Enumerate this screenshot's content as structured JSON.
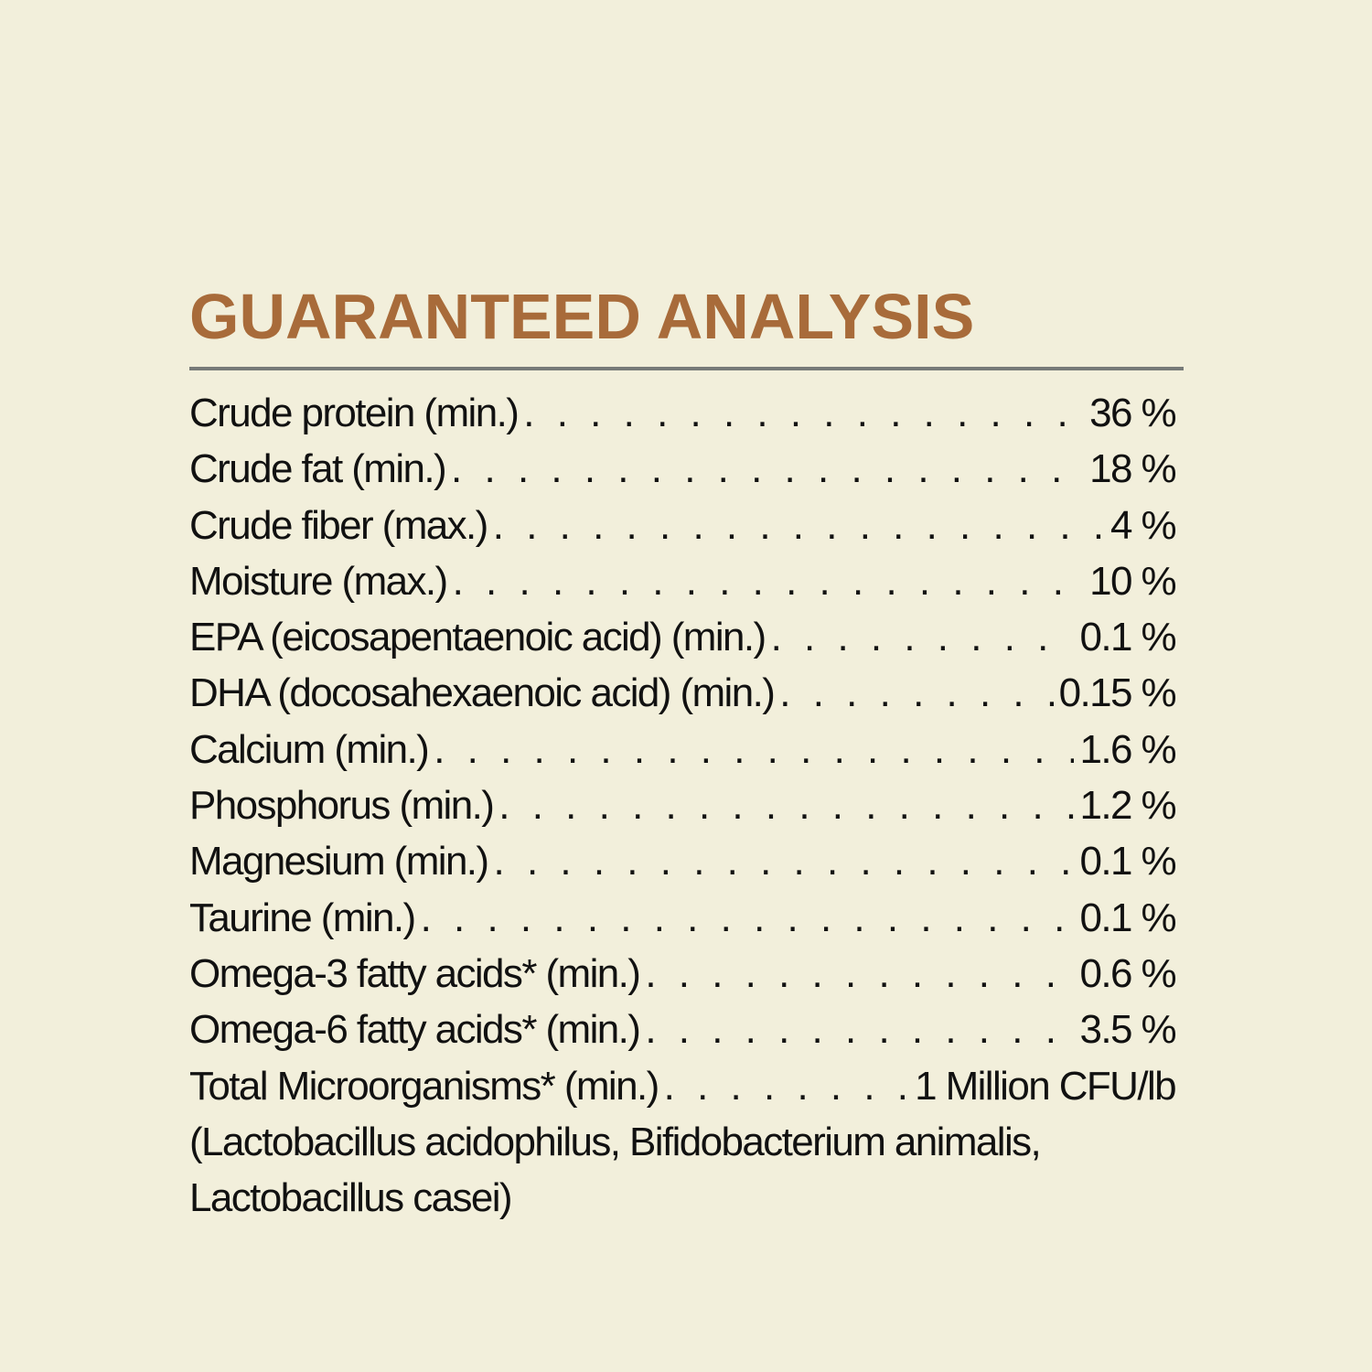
{
  "title": "GUARANTEED ANALYSIS",
  "colors": {
    "title": "#a86b3a",
    "background": "#f2efdb",
    "rule": "#777a78",
    "text": "#111111"
  },
  "rows": [
    {
      "label": "Crude protein (min.)",
      "value": "36 %"
    },
    {
      "label": "Crude fat (min.)",
      "value": "18 %"
    },
    {
      "label": "Crude fiber (max.)",
      "value": "4 %"
    },
    {
      "label": "Moisture (max.)",
      "value": "10 %"
    },
    {
      "label": "EPA (eicosapentaenoic acid) (min.)",
      "value": "0.1 %"
    },
    {
      "label": "DHA (docosahexaenoic acid) (min.)",
      "value": "0.15 %"
    },
    {
      "label": "Calcium (min.)",
      "value": "1.6 %"
    },
    {
      "label": "Phosphorus (min.)",
      "value": "1.2 %"
    },
    {
      "label": "Magnesium (min.)",
      "value": "0.1 %"
    },
    {
      "label": "Taurine (min.)",
      "value": "0.1 %"
    },
    {
      "label": "Omega-3 fatty acids* (min.)",
      "value": "0.6 %"
    },
    {
      "label": "Omega-6 fatty acids* (min.)",
      "value": "3.5 %"
    },
    {
      "label": "Total Microorganisms* (min.)",
      "value": "1 Million CFU/lb"
    }
  ],
  "footnote_lines": [
    "(Lactobacillus acidophilus, Bifidobacterium animalis,",
    "Lactobacillus casei)"
  ]
}
